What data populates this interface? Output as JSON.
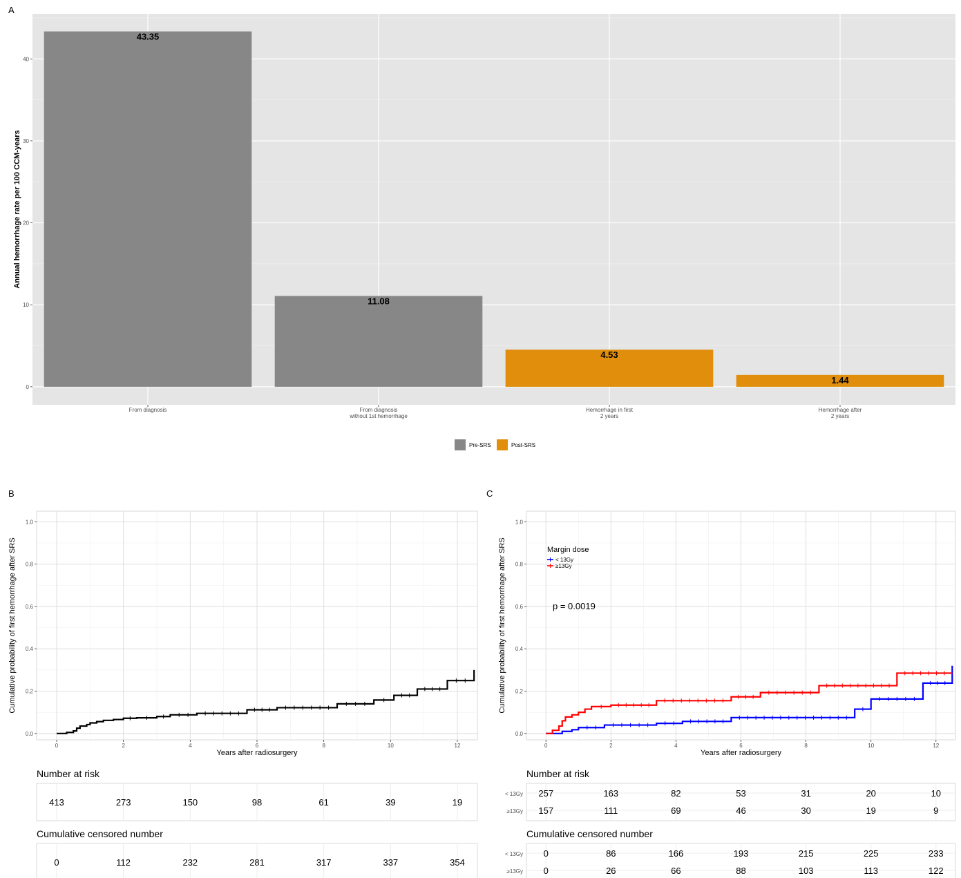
{
  "chart_data": [
    {
      "panel": "A",
      "type": "bar",
      "ylabel": "Annual hemorrhage rate per 100 CCM-years",
      "categories": [
        "From diagnosis",
        "From diagnosis\nwithout 1st hemorrhage",
        "Hemorrhage in first\n2 years",
        "Hemorrhage after\n2 years"
      ],
      "values": [
        43.35,
        11.08,
        4.53,
        1.44
      ],
      "value_labels": [
        "43.35",
        "11.08",
        "4.53",
        "1.44"
      ],
      "groups": [
        "Pre-SRS",
        "Pre-SRS",
        "Post-SRS",
        "Post-SRS"
      ],
      "legend": [
        {
          "name": "Pre-SRS",
          "color": "#878787"
        },
        {
          "name": "Post-SRS",
          "color": "#e08e0b"
        }
      ],
      "legend_position": "bottom",
      "yticks": [
        "0",
        "10",
        "20",
        "30",
        "40"
      ],
      "ylim": [
        -2.2,
        45.5
      ],
      "grid": true,
      "background": "#e5e5e5"
    },
    {
      "panel": "B",
      "type": "line",
      "step": true,
      "xlabel": "Years after radiosurgery",
      "ylabel": "Cumulative probability of first hemorrhage after SRS",
      "xticks": [
        "0",
        "2",
        "4",
        "6",
        "8",
        "10",
        "12"
      ],
      "yticks": [
        "0.0",
        "0.2",
        "0.4",
        "0.6",
        "0.8",
        "1.0"
      ],
      "xlim": [
        -0.6,
        12.6
      ],
      "ylim": [
        -0.03,
        1.05
      ],
      "series": [
        {
          "color": "#000000",
          "x": [
            0,
            0.3,
            0.5,
            0.6,
            0.7,
            0.9,
            1.0,
            1.2,
            1.4,
            1.7,
            2.0,
            2.4,
            3.0,
            3.4,
            4.2,
            5.7,
            6.6,
            8.4,
            9.5,
            10.1,
            10.8,
            11.7,
            12.5
          ],
          "y": [
            0,
            0.005,
            0.012,
            0.025,
            0.035,
            0.042,
            0.05,
            0.056,
            0.062,
            0.066,
            0.072,
            0.074,
            0.08,
            0.088,
            0.095,
            0.112,
            0.122,
            0.14,
            0.158,
            0.18,
            0.21,
            0.25,
            0.3
          ]
        }
      ],
      "risk_table": {
        "title": "Number at risk",
        "rows": [
          {
            "label": "",
            "values": [
              "413",
              "273",
              "150",
              "98",
              "61",
              "39",
              "19"
            ]
          }
        ]
      },
      "censor_table": {
        "title": "Cumulative censored number",
        "rows": [
          {
            "label": "",
            "values": [
              "0",
              "112",
              "232",
              "281",
              "317",
              "337",
              "354"
            ]
          }
        ]
      }
    },
    {
      "panel": "C",
      "type": "line",
      "step": true,
      "xlabel": "Years after radiosurgery",
      "ylabel": "Cumulative probability of first hemorrhage after SRS",
      "xticks": [
        "0",
        "2",
        "4",
        "6",
        "8",
        "10",
        "12"
      ],
      "yticks": [
        "0.0",
        "0.2",
        "0.4",
        "0.6",
        "0.8",
        "1.0"
      ],
      "xlim": [
        -0.6,
        12.6
      ],
      "ylim": [
        -0.03,
        1.05
      ],
      "legend_title": "Margin dose",
      "legend_position": "top-left",
      "annotation": "p = 0.0019",
      "series": [
        {
          "name": "< 13Gy",
          "color": "#0000ff",
          "x": [
            0,
            0.5,
            0.8,
            1.0,
            1.8,
            3.4,
            4.2,
            5.7,
            9.5,
            10.0,
            11.6,
            12.5
          ],
          "y": [
            0,
            0.01,
            0.018,
            0.028,
            0.04,
            0.048,
            0.057,
            0.075,
            0.115,
            0.163,
            0.238,
            0.32
          ]
        },
        {
          "name": "≥13Gy",
          "color": "#ff0000",
          "x": [
            0,
            0.2,
            0.4,
            0.5,
            0.6,
            0.8,
            1.0,
            1.2,
            1.4,
            2.0,
            3.4,
            5.7,
            6.6,
            8.4,
            10.8,
            12.5
          ],
          "y": [
            0,
            0.015,
            0.035,
            0.06,
            0.078,
            0.088,
            0.1,
            0.115,
            0.127,
            0.134,
            0.155,
            0.173,
            0.193,
            0.226,
            0.285,
            0.285
          ]
        }
      ],
      "risk_table": {
        "title": "Number at risk",
        "rows": [
          {
            "label": "< 13Gy",
            "values": [
              "257",
              "163",
              "82",
              "53",
              "31",
              "20",
              "10"
            ]
          },
          {
            "label": "≥13Gy",
            "values": [
              "157",
              "111",
              "69",
              "46",
              "30",
              "19",
              "9"
            ]
          }
        ]
      },
      "censor_table": {
        "title": "Cumulative censored number",
        "rows": [
          {
            "label": "< 13Gy",
            "values": [
              "0",
              "86",
              "166",
              "193",
              "215",
              "225",
              "233"
            ]
          },
          {
            "label": "≥13Gy",
            "values": [
              "0",
              "26",
              "66",
              "88",
              "103",
              "113",
              "122"
            ]
          }
        ]
      }
    }
  ],
  "panel_labels": [
    "A",
    "B",
    "C"
  ]
}
